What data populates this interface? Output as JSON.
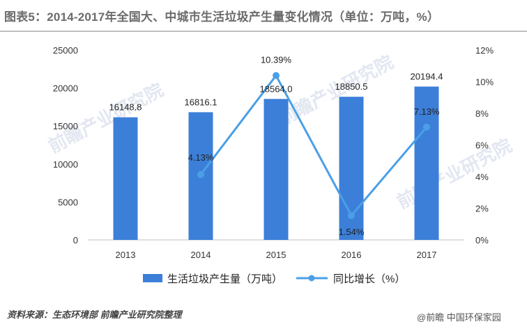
{
  "title": "图表5：2014-2017年全国大、中城市生活垃圾产生量变化情况（单位：万吨，%）",
  "source": "资料来源：生态环境部 前瞻产业研究院整理",
  "credit": "@前瞻  中国环保家园",
  "chart_data": {
    "type": "bar",
    "categories": [
      "2013",
      "2014",
      "2015",
      "2016",
      "2017"
    ],
    "series": [
      {
        "name": "生活垃圾产生量（万吨）",
        "type": "bar",
        "axis": "left",
        "color": "#3c7fd9",
        "values": [
          16148.8,
          16816.1,
          18564.0,
          18850.5,
          20194.4
        ],
        "labels": [
          "16148.8",
          "16816.1",
          "18564.0",
          "18850.5",
          "20194.4"
        ]
      },
      {
        "name": "同比增长（%）",
        "type": "line",
        "axis": "right",
        "color": "#4a9fe6",
        "values": [
          null,
          4.13,
          10.39,
          1.54,
          7.13
        ],
        "labels": [
          "",
          "4.13%",
          "10.39%",
          "1.54%",
          "7.13%"
        ]
      }
    ],
    "y_left": {
      "min": 0,
      "max": 25000,
      "ticks": [
        "0",
        "5000",
        "10000",
        "15000",
        "20000",
        "25000"
      ]
    },
    "y_right": {
      "min": 0,
      "max": 12,
      "ticks": [
        "0%",
        "2%",
        "4%",
        "6%",
        "8%",
        "10%",
        "12%"
      ]
    },
    "grid": false,
    "legend": "bottom"
  }
}
